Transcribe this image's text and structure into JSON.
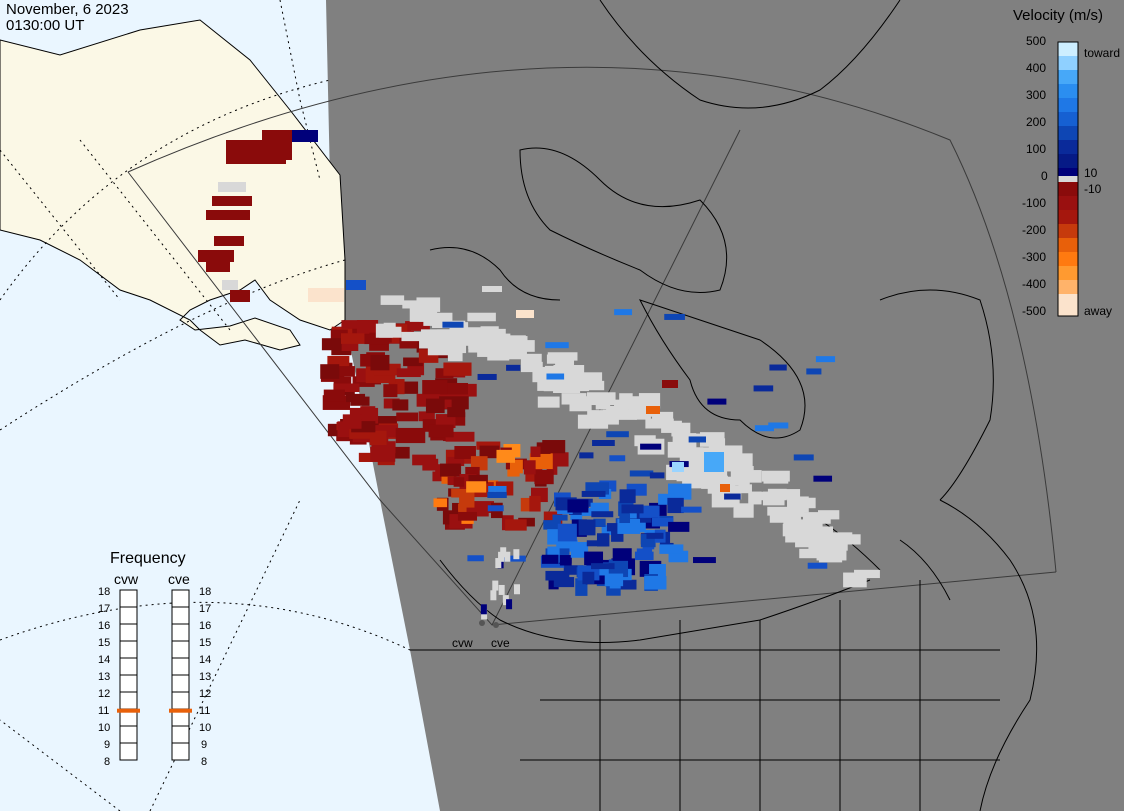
{
  "header": {
    "date": "November, 6 2023",
    "time": "0130:00 UT"
  },
  "colorbar": {
    "title": "Velocity (m/s)",
    "ticks": [
      "500",
      "400",
      "300",
      "200",
      "100",
      "10",
      "0",
      "-10",
      "-100",
      "-200",
      "-300",
      "-400",
      "-500"
    ],
    "toward_label": "toward",
    "away_label": "away",
    "colors": [
      "#fbe3cc",
      "#ffb36a",
      "#ff8a1a",
      "#e8600a",
      "#c63a0c",
      "#a5170d",
      "#8a0b0b",
      "#d8d8d8",
      "#00007a",
      "#0a2a9a",
      "#1450c8",
      "#1f78e6",
      "#47a8f8",
      "#9ad4ff"
    ]
  },
  "frequency": {
    "title": "Frequency",
    "radars": [
      {
        "code": "cvw",
        "freq_mhz": 10.9
      },
      {
        "code": "cve",
        "freq_mhz": 10.9
      }
    ],
    "scale": [
      "18",
      "17",
      "16",
      "15",
      "14",
      "13",
      "12",
      "11",
      "10",
      "9",
      "8"
    ]
  },
  "map": {
    "radar_sites": [
      "cvw",
      "cve"
    ],
    "colors": {
      "land": "#808080",
      "ocean": "#eaf6ff",
      "night_land": "#fbf8e6",
      "coast": "#000000"
    }
  }
}
